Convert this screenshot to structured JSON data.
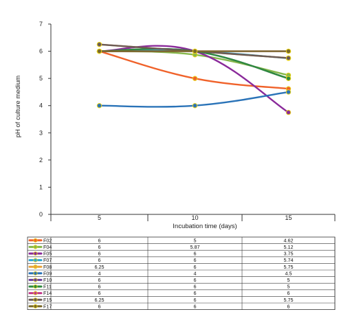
{
  "chart_data": {
    "type": "line",
    "title": "",
    "xlabel": "Incubation time (days)",
    "ylabel": "pH of culture medium",
    "x": [
      5,
      10,
      15
    ],
    "categories": [
      "5",
      "10",
      "15"
    ],
    "ylim": [
      0,
      7
    ],
    "yticks": [
      "0",
      "1",
      "2",
      "3",
      "4",
      "5",
      "6",
      "7"
    ],
    "grid": false,
    "legend": "data table below chart",
    "series": [
      {
        "name": "F02",
        "color": "#f0622a",
        "values": [
          6,
          5,
          4.62
        ],
        "table": [
          "6",
          "5",
          "4.62"
        ]
      },
      {
        "name": "F04",
        "color": "#86b84a",
        "values": [
          6,
          5.87,
          5.12
        ],
        "table": [
          "6",
          "5.87",
          "5.12"
        ]
      },
      {
        "name": "F05",
        "color": "#8a2a9a",
        "values": [
          6,
          6,
          3.75
        ],
        "table": [
          "6",
          "6",
          "3.75"
        ]
      },
      {
        "name": "F07",
        "color": "#2aa6d4",
        "values": [
          6,
          6,
          5.74
        ],
        "table": [
          "6",
          "6",
          "5.74"
        ]
      },
      {
        "name": "F08",
        "color": "#e8a23a",
        "values": [
          6.25,
          6,
          5.75
        ],
        "table": [
          "6.25",
          "6",
          "5.75"
        ]
      },
      {
        "name": "F09",
        "color": "#2a73b8",
        "values": [
          4,
          4,
          4.5
        ],
        "table": [
          "4",
          "4",
          "4.5"
        ]
      },
      {
        "name": "F10",
        "color": "#6a3d9a",
        "values": [
          6,
          6,
          5
        ],
        "table": [
          "6",
          "6",
          "5"
        ]
      },
      {
        "name": "F11",
        "color": "#2e8b3e",
        "values": [
          6,
          6,
          5
        ],
        "table": [
          "6",
          "6",
          "5"
        ]
      },
      {
        "name": "F14",
        "color": "#c2378a",
        "values": [
          6,
          6,
          6
        ],
        "table": [
          "6",
          "6",
          "6"
        ]
      },
      {
        "name": "F15",
        "color": "#6b5a55",
        "values": [
          6.25,
          6,
          5.75
        ],
        "table": [
          "6.25",
          "6",
          "5.75"
        ]
      },
      {
        "name": "F17",
        "color": "#7a6a2a",
        "values": [
          6,
          6,
          6
        ],
        "table": [
          "6",
          "6",
          "6"
        ]
      }
    ]
  }
}
